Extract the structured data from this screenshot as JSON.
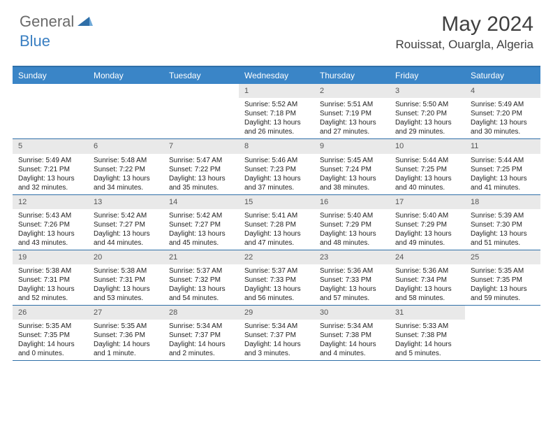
{
  "brand": {
    "general": "General",
    "blue": "Blue"
  },
  "title": "May 2024",
  "location": "Rouissat, Ouargla, Algeria",
  "colors": {
    "header_bg": "#3a85c7",
    "border": "#2f6fa8",
    "daynum_bg": "#e9e9e9",
    "logo_gray": "#6a6a6a",
    "logo_blue": "#3a7fc2"
  },
  "dayNames": [
    "Sunday",
    "Monday",
    "Tuesday",
    "Wednesday",
    "Thursday",
    "Friday",
    "Saturday"
  ],
  "weeks": [
    [
      {
        "n": "",
        "empty": true
      },
      {
        "n": "",
        "empty": true
      },
      {
        "n": "",
        "empty": true
      },
      {
        "n": "1",
        "sr": "5:52 AM",
        "ss": "7:18 PM",
        "dl": "13 hours and 26 minutes."
      },
      {
        "n": "2",
        "sr": "5:51 AM",
        "ss": "7:19 PM",
        "dl": "13 hours and 27 minutes."
      },
      {
        "n": "3",
        "sr": "5:50 AM",
        "ss": "7:20 PM",
        "dl": "13 hours and 29 minutes."
      },
      {
        "n": "4",
        "sr": "5:49 AM",
        "ss": "7:20 PM",
        "dl": "13 hours and 30 minutes."
      }
    ],
    [
      {
        "n": "5",
        "sr": "5:49 AM",
        "ss": "7:21 PM",
        "dl": "13 hours and 32 minutes."
      },
      {
        "n": "6",
        "sr": "5:48 AM",
        "ss": "7:22 PM",
        "dl": "13 hours and 34 minutes."
      },
      {
        "n": "7",
        "sr": "5:47 AM",
        "ss": "7:22 PM",
        "dl": "13 hours and 35 minutes."
      },
      {
        "n": "8",
        "sr": "5:46 AM",
        "ss": "7:23 PM",
        "dl": "13 hours and 37 minutes."
      },
      {
        "n": "9",
        "sr": "5:45 AM",
        "ss": "7:24 PM",
        "dl": "13 hours and 38 minutes."
      },
      {
        "n": "10",
        "sr": "5:44 AM",
        "ss": "7:25 PM",
        "dl": "13 hours and 40 minutes."
      },
      {
        "n": "11",
        "sr": "5:44 AM",
        "ss": "7:25 PM",
        "dl": "13 hours and 41 minutes."
      }
    ],
    [
      {
        "n": "12",
        "sr": "5:43 AM",
        "ss": "7:26 PM",
        "dl": "13 hours and 43 minutes."
      },
      {
        "n": "13",
        "sr": "5:42 AM",
        "ss": "7:27 PM",
        "dl": "13 hours and 44 minutes."
      },
      {
        "n": "14",
        "sr": "5:42 AM",
        "ss": "7:27 PM",
        "dl": "13 hours and 45 minutes."
      },
      {
        "n": "15",
        "sr": "5:41 AM",
        "ss": "7:28 PM",
        "dl": "13 hours and 47 minutes."
      },
      {
        "n": "16",
        "sr": "5:40 AM",
        "ss": "7:29 PM",
        "dl": "13 hours and 48 minutes."
      },
      {
        "n": "17",
        "sr": "5:40 AM",
        "ss": "7:29 PM",
        "dl": "13 hours and 49 minutes."
      },
      {
        "n": "18",
        "sr": "5:39 AM",
        "ss": "7:30 PM",
        "dl": "13 hours and 51 minutes."
      }
    ],
    [
      {
        "n": "19",
        "sr": "5:38 AM",
        "ss": "7:31 PM",
        "dl": "13 hours and 52 minutes."
      },
      {
        "n": "20",
        "sr": "5:38 AM",
        "ss": "7:31 PM",
        "dl": "13 hours and 53 minutes."
      },
      {
        "n": "21",
        "sr": "5:37 AM",
        "ss": "7:32 PM",
        "dl": "13 hours and 54 minutes."
      },
      {
        "n": "22",
        "sr": "5:37 AM",
        "ss": "7:33 PM",
        "dl": "13 hours and 56 minutes."
      },
      {
        "n": "23",
        "sr": "5:36 AM",
        "ss": "7:33 PM",
        "dl": "13 hours and 57 minutes."
      },
      {
        "n": "24",
        "sr": "5:36 AM",
        "ss": "7:34 PM",
        "dl": "13 hours and 58 minutes."
      },
      {
        "n": "25",
        "sr": "5:35 AM",
        "ss": "7:35 PM",
        "dl": "13 hours and 59 minutes."
      }
    ],
    [
      {
        "n": "26",
        "sr": "5:35 AM",
        "ss": "7:35 PM",
        "dl": "14 hours and 0 minutes."
      },
      {
        "n": "27",
        "sr": "5:35 AM",
        "ss": "7:36 PM",
        "dl": "14 hours and 1 minute."
      },
      {
        "n": "28",
        "sr": "5:34 AM",
        "ss": "7:37 PM",
        "dl": "14 hours and 2 minutes."
      },
      {
        "n": "29",
        "sr": "5:34 AM",
        "ss": "7:37 PM",
        "dl": "14 hours and 3 minutes."
      },
      {
        "n": "30",
        "sr": "5:34 AM",
        "ss": "7:38 PM",
        "dl": "14 hours and 4 minutes."
      },
      {
        "n": "31",
        "sr": "5:33 AM",
        "ss": "7:38 PM",
        "dl": "14 hours and 5 minutes."
      },
      {
        "n": "",
        "empty": true
      }
    ]
  ],
  "labels": {
    "sunrise": "Sunrise: ",
    "sunset": "Sunset: ",
    "daylight": "Daylight: "
  }
}
